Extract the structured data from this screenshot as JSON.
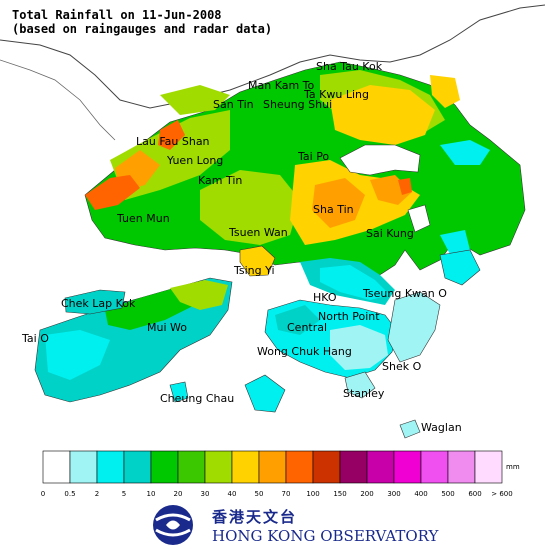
{
  "title": {
    "line1": "Total Rainfall on 11-Jun-2008",
    "line2": "(based on raingauges and radar data)"
  },
  "places": [
    {
      "id": "sha-tau-kok",
      "label": "Sha Tau Kok"
    },
    {
      "id": "man-kam-to",
      "label": "Man Kam To"
    },
    {
      "id": "ta-kwu-ling",
      "label": "Ta Kwu Ling"
    },
    {
      "id": "san-tin",
      "label": "San Tin"
    },
    {
      "id": "sheung-shui",
      "label": "Sheung Shui"
    },
    {
      "id": "lau-fau-shan",
      "label": "Lau Fau Shan"
    },
    {
      "id": "yuen-long",
      "label": "Yuen Long"
    },
    {
      "id": "tai-po",
      "label": "Tai Po"
    },
    {
      "id": "kam-tin",
      "label": "Kam Tin"
    },
    {
      "id": "tuen-mun",
      "label": "Tuen Mun"
    },
    {
      "id": "sha-tin",
      "label": "Sha Tin"
    },
    {
      "id": "tsuen-wan",
      "label": "Tsuen Wan"
    },
    {
      "id": "sai-kung",
      "label": "Sai Kung"
    },
    {
      "id": "tsing-yi",
      "label": "Tsing Yi"
    },
    {
      "id": "chek-lap-kok",
      "label": "Chek Lap Kok"
    },
    {
      "id": "hko",
      "label": "HKO"
    },
    {
      "id": "tseung-kwan-o",
      "label": "Tseung Kwan O"
    },
    {
      "id": "north-point",
      "label": "North Point"
    },
    {
      "id": "mui-wo",
      "label": "Mui Wo"
    },
    {
      "id": "central",
      "label": "Central"
    },
    {
      "id": "tai-o",
      "label": "Tai O"
    },
    {
      "id": "wong-chuk-hang",
      "label": "Wong Chuk Hang"
    },
    {
      "id": "shek-o",
      "label": "Shek O"
    },
    {
      "id": "stanley",
      "label": "Stanley"
    },
    {
      "id": "cheung-chau",
      "label": "Cheung Chau"
    },
    {
      "id": "waglan",
      "label": "Waglan"
    }
  ],
  "legend": {
    "unit": "mm",
    "bins": [
      {
        "color": "#ffffff",
        "label": "0"
      },
      {
        "color": "#a0f4f4",
        "label": "0.5"
      },
      {
        "color": "#00f0f0",
        "label": "2"
      },
      {
        "color": "#00d2c8",
        "label": "5"
      },
      {
        "color": "#00c800",
        "label": "10"
      },
      {
        "color": "#3cc800",
        "label": "20"
      },
      {
        "color": "#a0dc00",
        "label": "30"
      },
      {
        "color": "#ffd200",
        "label": "40"
      },
      {
        "color": "#ffa000",
        "label": "50"
      },
      {
        "color": "#ff6400",
        "label": "70"
      },
      {
        "color": "#cc3200",
        "label": "100"
      },
      {
        "color": "#960064",
        "label": "150"
      },
      {
        "color": "#c800aa",
        "label": "200"
      },
      {
        "color": "#f000d2",
        "label": "300"
      },
      {
        "color": "#f050f0",
        "label": "400"
      },
      {
        "color": "#f08cf0",
        "label": "500"
      },
      {
        "color": "#ffdcff",
        "label": "600"
      }
    ],
    "last_label": "> 600"
  },
  "logo": {
    "chinese": "香港天文台",
    "english": "HONG KONG OBSERVATORY"
  }
}
